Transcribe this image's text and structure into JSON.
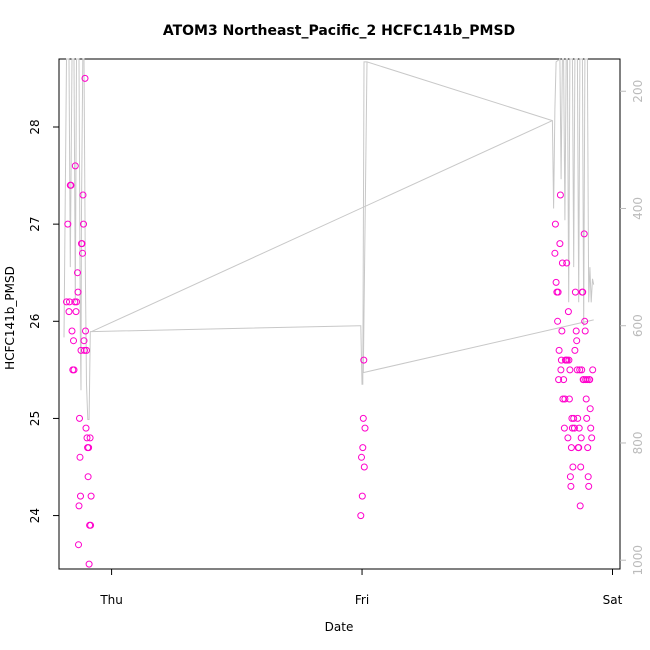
{
  "chart_data": {
    "type": "scatter",
    "title": "ATOM3 Northeast_Pacific_2 HCFC141b_PMSD",
    "xlabel": "Date",
    "ylabel": "HCFC141b_PMSD",
    "x_ticks": [
      "Thu",
      "Fri",
      "Sat"
    ],
    "y_ticks": [
      "24",
      "25",
      "26",
      "27",
      "28"
    ],
    "y2_ticks": [
      "200",
      "400",
      "600",
      "800",
      "1000"
    ],
    "x_range_days": [
      -0.21,
      2.03
    ],
    "ylim": [
      23.45,
      28.7
    ],
    "y2lim": [
      1015,
      145
    ],
    "y2_reversed": true,
    "grid": false,
    "point_color": "#ff00cc",
    "line_color": "#c8c8c8",
    "series": [
      {
        "marker": "circle",
        "points": [
          [
            -0.18,
            26.2
          ],
          [
            -0.175,
            27.0
          ],
          [
            -0.17,
            26.1
          ],
          [
            -0.168,
            26.2
          ],
          [
            -0.165,
            27.4
          ],
          [
            -0.162,
            27.4
          ],
          [
            -0.158,
            25.9
          ],
          [
            -0.155,
            25.5
          ],
          [
            -0.152,
            25.8
          ],
          [
            -0.15,
            25.5
          ],
          [
            -0.147,
            26.2
          ],
          [
            -0.145,
            27.6
          ],
          [
            -0.142,
            26.1
          ],
          [
            -0.14,
            26.2
          ],
          [
            -0.136,
            26.5
          ],
          [
            -0.134,
            26.3
          ],
          [
            -0.132,
            23.7
          ],
          [
            -0.13,
            24.1
          ],
          [
            -0.128,
            25.0
          ],
          [
            -0.126,
            24.6
          ],
          [
            -0.124,
            24.2
          ],
          [
            -0.122,
            25.7
          ],
          [
            -0.12,
            26.8
          ],
          [
            -0.118,
            26.8
          ],
          [
            -0.116,
            26.7
          ],
          [
            -0.114,
            27.3
          ],
          [
            -0.112,
            27.0
          ],
          [
            -0.11,
            25.8
          ],
          [
            -0.108,
            25.7
          ],
          [
            -0.106,
            28.5
          ],
          [
            -0.104,
            25.9
          ],
          [
            -0.102,
            24.9
          ],
          [
            -0.1,
            25.7
          ],
          [
            -0.098,
            24.8
          ],
          [
            -0.096,
            24.7
          ],
          [
            -0.094,
            24.4
          ],
          [
            -0.092,
            24.7
          ],
          [
            -0.09,
            23.5
          ],
          [
            -0.088,
            23.9
          ],
          [
            -0.086,
            24.8
          ],
          [
            -0.084,
            23.9
          ],
          [
            -0.082,
            24.2
          ],
          [
            0.995,
            24.0
          ],
          [
            0.998,
            24.6
          ],
          [
            1.001,
            24.2
          ],
          [
            1.003,
            24.7
          ],
          [
            1.005,
            25.0
          ],
          [
            1.007,
            25.6
          ],
          [
            1.009,
            24.5
          ],
          [
            1.012,
            24.9
          ],
          [
            1.77,
            26.7
          ],
          [
            1.772,
            27.0
          ],
          [
            1.775,
            26.4
          ],
          [
            1.778,
            26.3
          ],
          [
            1.781,
            26.0
          ],
          [
            1.783,
            26.3
          ],
          [
            1.785,
            25.4
          ],
          [
            1.787,
            25.7
          ],
          [
            1.79,
            26.8
          ],
          [
            1.792,
            27.3
          ],
          [
            1.794,
            25.5
          ],
          [
            1.796,
            25.6
          ],
          [
            1.798,
            25.9
          ],
          [
            1.8,
            26.6
          ],
          [
            1.802,
            25.2
          ],
          [
            1.805,
            25.4
          ],
          [
            1.808,
            24.9
          ],
          [
            1.81,
            25.2
          ],
          [
            1.812,
            25.6
          ],
          [
            1.815,
            25.6
          ],
          [
            1.817,
            26.6
          ],
          [
            1.819,
            25.6
          ],
          [
            1.822,
            24.8
          ],
          [
            1.824,
            26.1
          ],
          [
            1.826,
            25.6
          ],
          [
            1.828,
            25.2
          ],
          [
            1.83,
            25.5
          ],
          [
            1.832,
            24.4
          ],
          [
            1.834,
            24.3
          ],
          [
            1.836,
            24.7
          ],
          [
            1.838,
            25.0
          ],
          [
            1.84,
            24.9
          ],
          [
            1.842,
            24.5
          ],
          [
            1.845,
            25.0
          ],
          [
            1.848,
            24.9
          ],
          [
            1.85,
            25.7
          ],
          [
            1.852,
            26.3
          ],
          [
            1.855,
            25.9
          ],
          [
            1.857,
            25.8
          ],
          [
            1.859,
            25.5
          ],
          [
            1.861,
            25.0
          ],
          [
            1.863,
            24.7
          ],
          [
            1.865,
            24.7
          ],
          [
            1.867,
            24.9
          ],
          [
            1.869,
            25.5
          ],
          [
            1.871,
            24.1
          ],
          [
            1.873,
            24.5
          ],
          [
            1.875,
            24.8
          ],
          [
            1.877,
            25.5
          ],
          [
            1.879,
            26.3
          ],
          [
            1.881,
            26.3
          ],
          [
            1.883,
            25.4
          ],
          [
            1.885,
            25.4
          ],
          [
            1.887,
            26.9
          ],
          [
            1.889,
            26.0
          ],
          [
            1.891,
            25.9
          ],
          [
            1.893,
            25.4
          ],
          [
            1.895,
            25.2
          ],
          [
            1.897,
            25.0
          ],
          [
            1.899,
            25.4
          ],
          [
            1.901,
            24.7
          ],
          [
            1.903,
            24.4
          ],
          [
            1.905,
            24.3
          ],
          [
            1.907,
            25.4
          ],
          [
            1.909,
            25.4
          ],
          [
            1.911,
            25.1
          ],
          [
            1.913,
            24.9
          ],
          [
            1.917,
            24.8
          ],
          [
            1.921,
            25.5
          ]
        ]
      }
    ],
    "altitude_line": [
      [
        -0.19,
        620
      ],
      [
        -0.18,
        145
      ],
      [
        -0.17,
        145
      ],
      [
        -0.165,
        500
      ],
      [
        -0.158,
        145
      ],
      [
        -0.15,
        145
      ],
      [
        -0.145,
        560
      ],
      [
        -0.14,
        145
      ],
      [
        -0.13,
        145
      ],
      [
        -0.125,
        610
      ],
      [
        -0.122,
        710
      ],
      [
        -0.12,
        400
      ],
      [
        -0.115,
        145
      ],
      [
        -0.11,
        145
      ],
      [
        -0.105,
        500
      ],
      [
        -0.1,
        700
      ],
      [
        -0.095,
        760
      ],
      [
        -0.09,
        760
      ],
      [
        -0.085,
        610
      ],
      [
        -0.08,
        610
      ],
      [
        0.99,
        600
      ],
      [
        0.995,
        600
      ],
      [
        1.0,
        700
      ],
      [
        1.003,
        700
      ],
      [
        1.008,
        150
      ],
      [
        1.015,
        150
      ],
      [
        1.02,
        150
      ],
      [
        1.76,
        250
      ],
      [
        1.765,
        400
      ],
      [
        1.77,
        230
      ],
      [
        1.775,
        150
      ],
      [
        1.79,
        145
      ],
      [
        1.795,
        350
      ],
      [
        1.8,
        145
      ],
      [
        1.805,
        145
      ],
      [
        1.81,
        420
      ],
      [
        1.815,
        145
      ],
      [
        1.82,
        145
      ],
      [
        1.825,
        560
      ],
      [
        1.83,
        145
      ],
      [
        1.84,
        145
      ],
      [
        1.845,
        500
      ],
      [
        1.85,
        145
      ],
      [
        1.86,
        145
      ],
      [
        1.865,
        560
      ],
      [
        1.87,
        145
      ],
      [
        1.88,
        145
      ],
      [
        1.885,
        600
      ],
      [
        1.89,
        145
      ],
      [
        1.9,
        145
      ],
      [
        1.905,
        560
      ],
      [
        1.91,
        500
      ],
      [
        1.915,
        560
      ],
      [
        1.92,
        520
      ],
      [
        1.925,
        530
      ]
    ],
    "line_segments": [
      [
        [
          -0.08,
          610
        ],
        [
          1.76,
          250
        ]
      ],
      [
        [
          1.02,
          150
        ],
        [
          1.005,
          680
        ],
        [
          1.925,
          590
        ]
      ]
    ]
  }
}
